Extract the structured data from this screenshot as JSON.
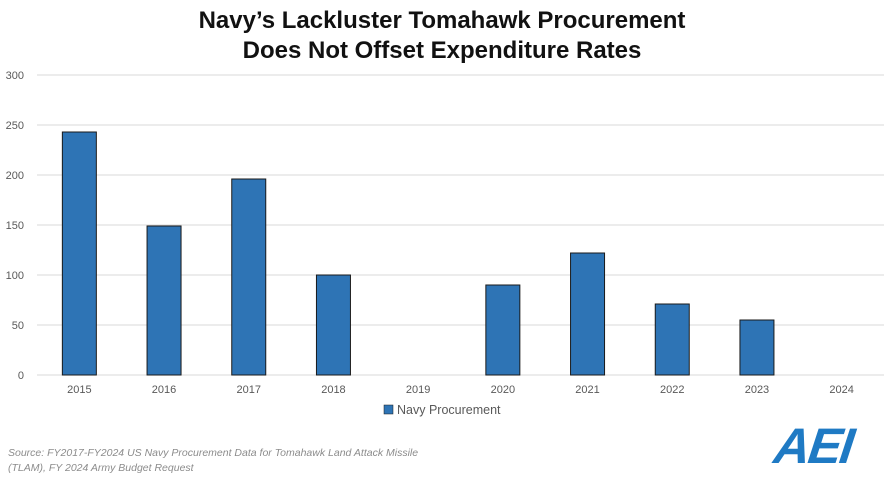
{
  "title_line1": "Navy’s Lackluster Tomahawk Procurement",
  "title_line2": "Does Not Offset Expenditure Rates",
  "source_line1": "Source: FY2017-FY2024 US Navy Procurement Data for Tomahawk Land Attack Missile",
  "source_line2": "(TLAM), FY 2024 Army Budget Request",
  "logo_text": "AEI",
  "colors": {
    "bar": "#2e74b5",
    "bar_stroke": "#1a1a1a",
    "grid": "#d9d9d9",
    "logo": "#1f7ac4"
  },
  "chart_data": {
    "type": "bar",
    "title": "Navy’s Lackluster Tomahawk Procurement Does Not Offset Expenditure Rates",
    "categories": [
      "2015",
      "2016",
      "2017",
      "2018",
      "2019",
      "2020",
      "2021",
      "2022",
      "2023",
      "2024"
    ],
    "series": [
      {
        "name": "Navy Procurement",
        "values": [
          243,
          149,
          196,
          100,
          0,
          90,
          122,
          71,
          55,
          0
        ]
      }
    ],
    "ylim": [
      0,
      300
    ],
    "yticks": [
      0,
      50,
      100,
      150,
      200,
      250,
      300
    ],
    "grid": true,
    "legend": "bottom-center"
  }
}
